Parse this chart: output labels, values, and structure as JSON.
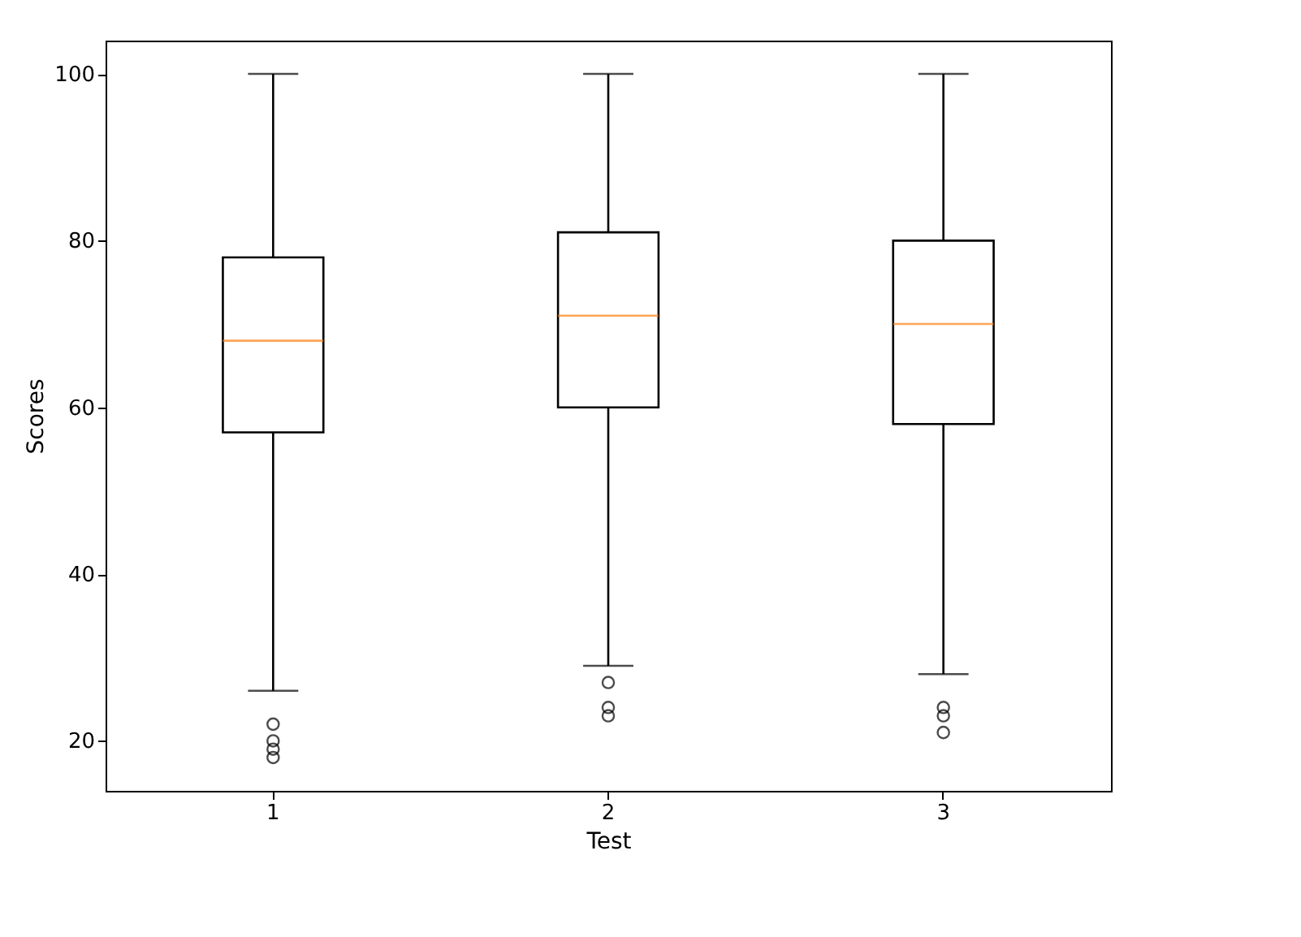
{
  "chart_data": {
    "type": "box",
    "xlabel": "Test",
    "ylabel": "Scores",
    "categories": [
      "1",
      "2",
      "3"
    ],
    "boxes": [
      {
        "low": 26,
        "q1": 57,
        "median": 68,
        "q3": 78,
        "high": 100,
        "outliers": [
          22,
          20,
          19,
          18
        ]
      },
      {
        "low": 29,
        "q1": 60,
        "median": 71,
        "q3": 81,
        "high": 100,
        "outliers": [
          27,
          24,
          23
        ]
      },
      {
        "low": 28,
        "q1": 58,
        "median": 70,
        "q3": 80,
        "high": 100,
        "outliers": [
          24,
          23,
          21
        ]
      }
    ],
    "color": "#000000",
    "ylim": [
      14,
      104
    ],
    "yticks": [
      20,
      40,
      60,
      80,
      100
    ],
    "grid": false,
    "marker": "circle"
  }
}
